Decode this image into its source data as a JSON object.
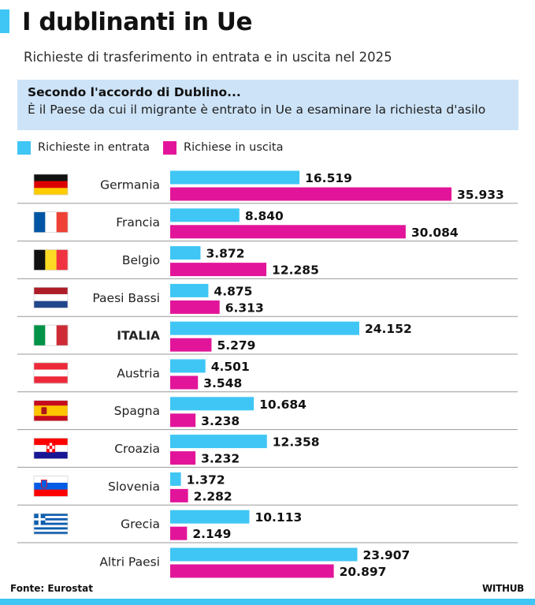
{
  "header": {
    "title": "I dublinanti in Ue",
    "subtitle": "Richieste di trasferimento in entrata e in uscita nel 2025"
  },
  "info_box": {
    "heading": "Secondo l'accordo di Dublino...",
    "text": "È il Paese da cui il migrante è entrato in Ue a esaminare la richiesta d'asilo"
  },
  "footer": {
    "source": "Fonte: Eurostat",
    "brand": "WITHUB"
  },
  "colors": {
    "entrata": "#3fc6f4",
    "uscita": "#e2159a",
    "accent": "#3fc6f4",
    "info_bg": "#cde3f7"
  },
  "chart_data": {
    "type": "bar",
    "orientation": "horizontal",
    "categories": [
      "Germania",
      "Francia",
      "Belgio",
      "Paesi Bassi",
      "ITALIA",
      "Austria",
      "Spagna",
      "Croazia",
      "Slovenia",
      "Grecia",
      "Altri Paesi"
    ],
    "flags": [
      "germany-flag",
      "france-flag",
      "belgium-flag",
      "netherlands-flag",
      "italy-flag",
      "austria-flag",
      "spain-flag",
      "croatia-flag",
      "slovenia-flag",
      "greece-flag",
      ""
    ],
    "highlight": "ITALIA",
    "series": [
      {
        "name": "Richieste in entrata",
        "values": [
          16519,
          8840,
          3872,
          4875,
          24152,
          4501,
          10684,
          12358,
          1372,
          10113,
          23907
        ],
        "labels": [
          "16.519",
          "8.840",
          "3.872",
          "4.875",
          "24.152",
          "4.501",
          "10.684",
          "12.358",
          "1.372",
          "10.113",
          "23.907"
        ]
      },
      {
        "name": "Richiese in uscita",
        "values": [
          35933,
          30084,
          12285,
          6313,
          5279,
          3548,
          3238,
          3232,
          2282,
          2149,
          20897
        ],
        "labels": [
          "35.933",
          "30.084",
          "12.285",
          "6.313",
          "5.279",
          "3.548",
          "3.238",
          "3.232",
          "2.282",
          "2.149",
          "20.897"
        ]
      }
    ],
    "xlim": [
      0,
      35933
    ],
    "legend_position": "top-left",
    "grid": false
  }
}
